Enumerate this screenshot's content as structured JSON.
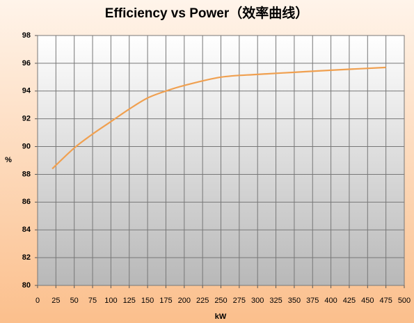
{
  "chart_data": {
    "type": "line",
    "title": "Efficiency vs Power（效率曲线）",
    "x_label": "kW",
    "y_label": "%",
    "series": [
      {
        "color": "#f0a050",
        "x": [
          20,
          50,
          75,
          100,
          125,
          150,
          175,
          200,
          250,
          300,
          350,
          400,
          475
        ],
        "values": [
          88.4,
          89.9,
          90.9,
          91.8,
          92.7,
          93.5,
          94.0,
          94.4,
          95.0,
          95.2,
          95.35,
          95.5,
          95.7
        ]
      }
    ],
    "xlim": [
      0,
      500
    ],
    "xticks": [
      0,
      25,
      50,
      75,
      100,
      125,
      150,
      175,
      200,
      225,
      250,
      275,
      300,
      325,
      350,
      375,
      400,
      425,
      450,
      475,
      500
    ],
    "ylim": [
      80,
      98
    ],
    "yticks": [
      80,
      82,
      84,
      86,
      88,
      90,
      92,
      94,
      96,
      98
    ],
    "grid": true
  }
}
